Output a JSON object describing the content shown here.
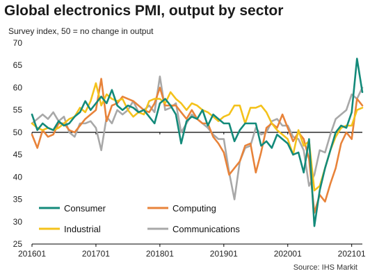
{
  "chart_data": {
    "type": "line",
    "title": "Global electronics PMI, output by sector",
    "subtitle": "Survey index, 50 = no change in output",
    "source": "Source: IHS Markit",
    "ylim": [
      25,
      70
    ],
    "yticks": [
      25,
      30,
      35,
      40,
      45,
      50,
      55,
      60,
      65,
      70
    ],
    "reference_line": 50,
    "xlim": [
      "2016-01",
      "2021-03"
    ],
    "xticks": [
      "201601",
      "201701",
      "201801",
      "201901",
      "202001",
      "202101"
    ],
    "grid": false,
    "legend_position": "bottom-left",
    "x": [
      "2016-01",
      "2016-02",
      "2016-03",
      "2016-04",
      "2016-05",
      "2016-06",
      "2016-07",
      "2016-08",
      "2016-09",
      "2016-10",
      "2016-11",
      "2016-12",
      "2017-01",
      "2017-02",
      "2017-03",
      "2017-04",
      "2017-05",
      "2017-06",
      "2017-07",
      "2017-08",
      "2017-09",
      "2017-10",
      "2017-11",
      "2017-12",
      "2018-01",
      "2018-02",
      "2018-03",
      "2018-04",
      "2018-05",
      "2018-06",
      "2018-07",
      "2018-08",
      "2018-09",
      "2018-10",
      "2018-11",
      "2018-12",
      "2019-01",
      "2019-02",
      "2019-03",
      "2019-04",
      "2019-05",
      "2019-06",
      "2019-07",
      "2019-08",
      "2019-09",
      "2019-10",
      "2019-11",
      "2019-12",
      "2020-01",
      "2020-02",
      "2020-03",
      "2020-04",
      "2020-05",
      "2020-06",
      "2020-07",
      "2020-08",
      "2020-09",
      "2020-10",
      "2020-11",
      "2020-12",
      "2021-01",
      "2021-02",
      "2021-03"
    ],
    "series": [
      {
        "name": "Consumer",
        "color": "#138a7a",
        "values": [
          54,
          50.5,
          52,
          51,
          50.5,
          52.5,
          51.5,
          52,
          53.5,
          54.5,
          57,
          55,
          56.5,
          58,
          56.5,
          59.5,
          56,
          55,
          56,
          55.5,
          54.5,
          55,
          53.5,
          52,
          56.5,
          57.5,
          56,
          54,
          47.5,
          52.5,
          53.5,
          53,
          55,
          51.5,
          54,
          53,
          52,
          52,
          48,
          50.5,
          52,
          52,
          52,
          47,
          48,
          46.5,
          49.5,
          48.5,
          47.5,
          45,
          45.5,
          41,
          48.5,
          29,
          37,
          42,
          46,
          50,
          51.5,
          51,
          54.5,
          66.5,
          59
        ]
      },
      {
        "name": "Computing",
        "color": "#e8833a",
        "values": [
          49.5,
          46.5,
          50.5,
          49,
          49.5,
          52,
          52,
          50.5,
          50,
          51.5,
          53,
          54,
          55,
          62,
          52.5,
          56,
          56.5,
          58,
          57.5,
          57,
          56,
          55,
          54.5,
          56.5,
          60,
          56,
          56,
          56,
          54.5,
          53,
          55,
          53,
          52,
          52,
          49,
          47.5,
          45.5,
          40.5,
          42,
          43.5,
          47,
          47.5,
          41,
          45.5,
          51,
          52,
          51,
          54,
          51,
          48,
          50,
          48.5,
          44,
          32,
          36,
          34.5,
          38.5,
          42,
          47.5,
          50,
          48.5,
          57.5,
          56
        ]
      },
      {
        "name": "Industrial",
        "color": "#f4c21b",
        "values": [
          52,
          51,
          50.5,
          51,
          50.5,
          51,
          52,
          53,
          53.5,
          55.5,
          54.5,
          57,
          61,
          56,
          58.5,
          57.5,
          57,
          57.5,
          55,
          53.5,
          54.5,
          54,
          57,
          57.5,
          57.5,
          56.5,
          59,
          57.5,
          56.5,
          55,
          56.5,
          56,
          55,
          54.5,
          53.5,
          52.5,
          53.5,
          54,
          56,
          56,
          52,
          55.5,
          55.5,
          56,
          54.5,
          52,
          50.5,
          49.5,
          48.5,
          45,
          50.5,
          47,
          48,
          37,
          38,
          42,
          46,
          49,
          51,
          51.5,
          51.5,
          55,
          55.5
        ]
      },
      {
        "name": "Communications",
        "color": "#a8a8a8",
        "values": [
          52,
          53,
          54,
          53,
          54.5,
          52.5,
          53.5,
          50,
          49,
          52,
          52,
          52.5,
          51,
          46,
          53.5,
          52,
          55,
          54,
          55,
          57,
          54.5,
          55,
          56,
          54.5,
          62.5,
          55,
          55.5,
          56.5,
          50,
          52,
          54,
          53,
          52,
          51,
          49.5,
          48.5,
          48.5,
          41,
          35,
          43.5,
          46.5,
          47,
          51,
          49.5,
          50,
          52.5,
          53,
          51.5,
          51.5,
          49,
          48.5,
          46,
          38,
          40.5,
          46,
          45.5,
          49.5,
          53,
          54,
          55,
          58.5,
          57.5,
          60
        ]
      }
    ]
  }
}
